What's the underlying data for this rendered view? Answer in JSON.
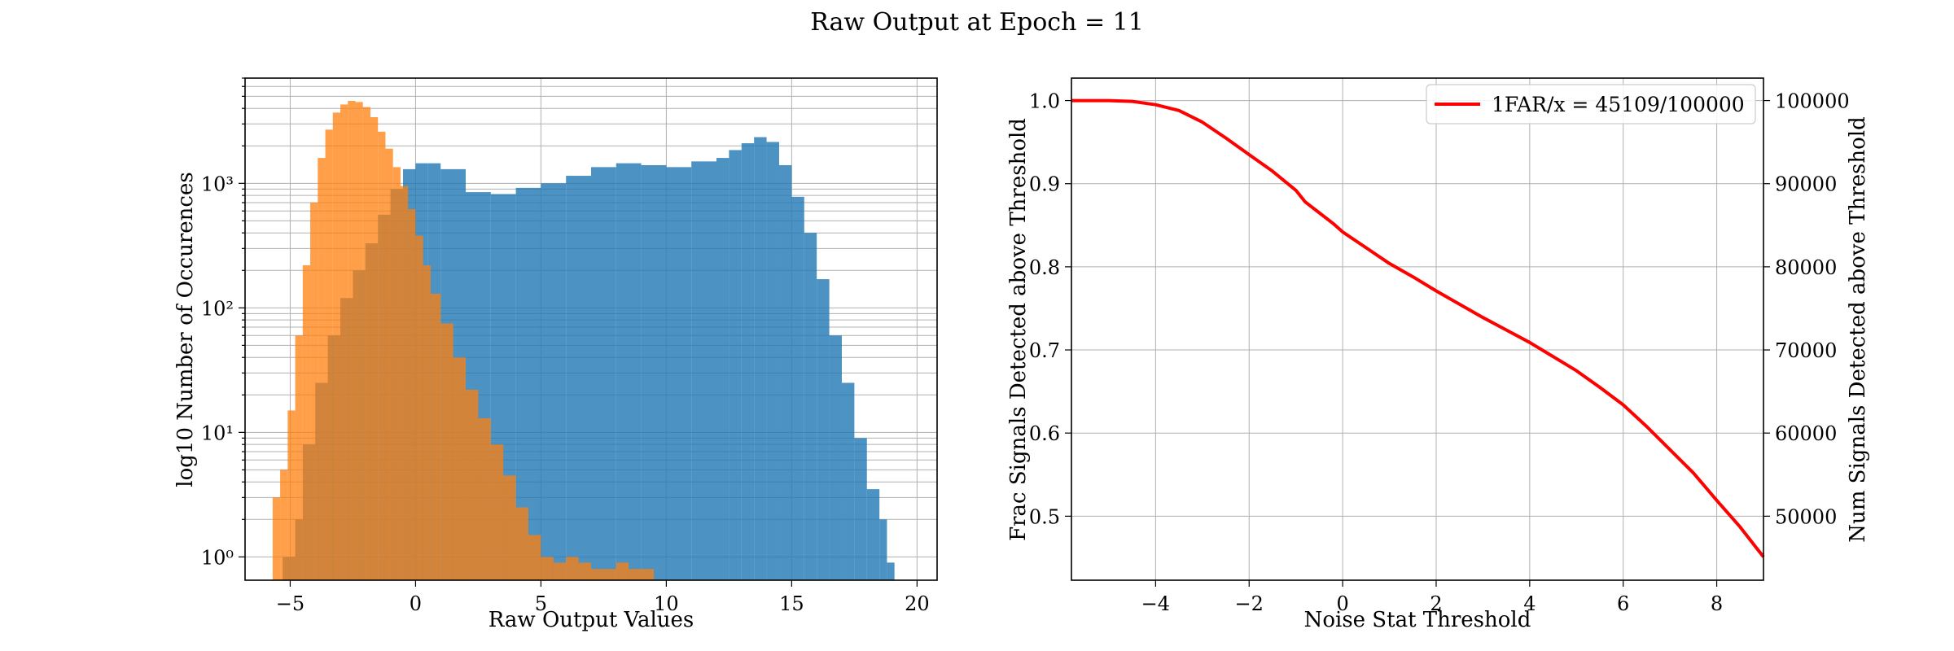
{
  "figure": {
    "title": "Raw Output at Epoch = 11"
  },
  "chart_data": [
    {
      "type": "histogram",
      "xlabel": "Raw Output Values",
      "ylabel": "log10 Number of Occurences",
      "xlim": [
        -6.8,
        20.8
      ],
      "ylim": [
        0.65,
        7000
      ],
      "yscale": "log",
      "grid": true,
      "x_ticks": [
        -5,
        0,
        5,
        10,
        15,
        20
      ],
      "x_tick_labels": [
        "−5",
        "0",
        "5",
        "10",
        "15",
        "20"
      ],
      "y_ticks": [
        1,
        10,
        100,
        1000
      ],
      "y_tick_labels": [
        "10⁰",
        "10¹",
        "10²",
        "10³"
      ],
      "colors": {
        "signals": "#1f77b4",
        "noise": "#ff7f0e"
      },
      "series": [
        {
          "role": "signals",
          "x": [
            -5.3,
            -4.8,
            -4.5,
            -4.0,
            -3.5,
            -3.0,
            -2.5,
            -2.0,
            -1.5,
            -1.0,
            -0.5,
            0.0,
            0.5,
            1.0,
            2.0,
            3.0,
            4.0,
            5.0,
            6.0,
            7.0,
            8.0,
            9.0,
            10.0,
            11.0,
            12.0,
            12.5,
            13.0,
            13.5,
            14.0,
            14.5,
            15.0,
            15.5,
            16.0,
            16.5,
            17.0,
            17.5,
            18.0,
            18.5,
            18.8
          ],
          "y": [
            1,
            2,
            8,
            25,
            60,
            120,
            200,
            330,
            560,
            900,
            1300,
            1450,
            1450,
            1300,
            850,
            820,
            920,
            1000,
            1150,
            1350,
            1450,
            1400,
            1350,
            1500,
            1600,
            1850,
            2100,
            2350,
            2150,
            1400,
            780,
            400,
            170,
            60,
            25,
            9,
            3.5,
            2,
            0.9
          ]
        },
        {
          "role": "noise",
          "x": [
            -5.7,
            -5.4,
            -5.1,
            -4.8,
            -4.5,
            -4.2,
            -3.9,
            -3.6,
            -3.3,
            -3.0,
            -2.7,
            -2.4,
            -2.1,
            -1.8,
            -1.5,
            -1.2,
            -0.9,
            -0.6,
            -0.3,
            0.0,
            0.3,
            0.6,
            1.0,
            1.5,
            2.0,
            2.5,
            3.0,
            3.5,
            4.0,
            4.5,
            5.0,
            5.5,
            6.0,
            6.5,
            7.0,
            7.5,
            8.0,
            8.5,
            9.0
          ],
          "y": [
            3,
            5,
            15,
            60,
            220,
            700,
            1600,
            2700,
            3700,
            4300,
            4600,
            4500,
            4100,
            3400,
            2600,
            1900,
            1350,
            950,
            620,
            380,
            220,
            130,
            75,
            40,
            22,
            13,
            8,
            4.5,
            2.5,
            1.5,
            1,
            0.9,
            1,
            0.9,
            0.8,
            0.8,
            0.9,
            0.8,
            0.8
          ]
        }
      ]
    },
    {
      "type": "line",
      "xlabel": "Noise Stat Threshold",
      "ylabel": "Frac Signals Detected above Threshold",
      "ylabel_right": "Num Signals Detected above Threshold",
      "xlim": [
        -5.8,
        9.0
      ],
      "ylim": [
        0.423,
        1.027
      ],
      "grid": true,
      "legend_loc": "upper right",
      "x_ticks": [
        -4,
        -2,
        0,
        2,
        4,
        6,
        8
      ],
      "x_tick_labels": [
        "−4",
        "−2",
        "0",
        "2",
        "4",
        "6",
        "8"
      ],
      "y_ticks": [
        0.5,
        0.6,
        0.7,
        0.8,
        0.9,
        1.0
      ],
      "y_tick_labels": [
        "0.5",
        "0.6",
        "0.7",
        "0.8",
        "0.9",
        "1.0"
      ],
      "y_right_ticks": [
        50000,
        60000,
        70000,
        80000,
        90000,
        100000
      ],
      "y_right_tick_labels": [
        "50000",
        "60000",
        "70000",
        "80000",
        "90000",
        "100000"
      ],
      "series": [
        {
          "name": "1FAR/x = 45109/100000",
          "color": "#ff0000",
          "x": [
            -5.8,
            -5.0,
            -4.5,
            -4.0,
            -3.5,
            -3.0,
            -2.5,
            -2.0,
            -1.5,
            -1.0,
            -0.8,
            -0.5,
            -0.2,
            0.0,
            0.5,
            1.0,
            1.5,
            2.0,
            2.5,
            3.0,
            3.5,
            4.0,
            4.5,
            5.0,
            5.5,
            6.0,
            6.5,
            7.0,
            7.5,
            8.0,
            8.5,
            9.0
          ],
          "y": [
            1.0,
            1.0,
            0.999,
            0.995,
            0.988,
            0.974,
            0.955,
            0.935,
            0.915,
            0.892,
            0.878,
            0.865,
            0.852,
            0.842,
            0.823,
            0.804,
            0.788,
            0.771,
            0.755,
            0.739,
            0.724,
            0.709,
            0.692,
            0.675,
            0.655,
            0.634,
            0.608,
            0.58,
            0.552,
            0.519,
            0.487,
            0.451
          ]
        }
      ]
    }
  ]
}
